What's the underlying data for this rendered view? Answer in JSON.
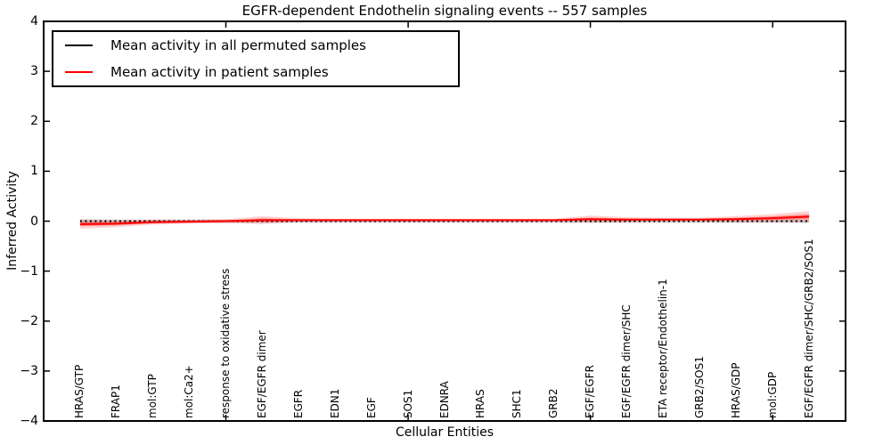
{
  "chart_data": {
    "type": "line",
    "title": "EGFR-dependent Endothelin signaling events -- 557 samples",
    "xlabel": "Cellular Entities",
    "ylabel": "Inferred Activity",
    "ylim": [
      -4,
      4
    ],
    "yticks": [
      4,
      3,
      2,
      1,
      0,
      -1,
      -2,
      -3,
      -4
    ],
    "xtick_indices": [
      4,
      9,
      14,
      19
    ],
    "grid": false,
    "legend_position": "upper left",
    "categories": [
      "HRAS/GTP",
      "FRAP1",
      "mol:GTP",
      "mol:Ca2+",
      "response to oxidative stress",
      "EGF/EGFR dimer",
      "EGFR",
      "EDN1",
      "EGF",
      "SOS1",
      "EDNRA",
      "HRAS",
      "SHC1",
      "GRB2",
      "EGF/EGFR",
      "EGF/EGFR dimer/SHC",
      "ETA receptor/Endothelin-1",
      "GRB2/SOS1",
      "HRAS/GDP",
      "mol:GDP",
      "EGF/EGFR dimer/SHC/GRB2/SOS1"
    ],
    "series": [
      {
        "name": "Mean activity in all permuted samples",
        "color": "#000000",
        "line_style": "dotted",
        "values": [
          0,
          0,
          0,
          0,
          0,
          0,
          0,
          0,
          0,
          0,
          0,
          0,
          0,
          0,
          0,
          0,
          0,
          0,
          0,
          0,
          0
        ],
        "band_halfwidth": [
          0.04,
          0.03,
          0.03,
          0.03,
          0.03,
          0.03,
          0.03,
          0.03,
          0.03,
          0.03,
          0.03,
          0.03,
          0.03,
          0.03,
          0.03,
          0.03,
          0.03,
          0.03,
          0.03,
          0.03,
          0.03
        ],
        "band_colors": [
          "rgba(110,110,110,0.30)"
        ]
      },
      {
        "name": "Mean activity in patient samples",
        "color": "#ff0000",
        "line_style": "solid",
        "values": [
          -0.06,
          -0.05,
          -0.02,
          -0.01,
          0.0,
          0.02,
          0.02,
          0.02,
          0.02,
          0.02,
          0.02,
          0.02,
          0.02,
          0.02,
          0.04,
          0.03,
          0.03,
          0.03,
          0.04,
          0.06,
          0.09
        ],
        "band_halfwidth": [
          0.09,
          0.07,
          0.05,
          0.04,
          0.04,
          0.08,
          0.04,
          0.03,
          0.03,
          0.03,
          0.03,
          0.03,
          0.03,
          0.03,
          0.07,
          0.05,
          0.04,
          0.04,
          0.06,
          0.08,
          0.11
        ],
        "band_colors": [
          "rgba(255,0,0,0.18)",
          "rgba(255,0,0,0.35)"
        ]
      }
    ]
  }
}
